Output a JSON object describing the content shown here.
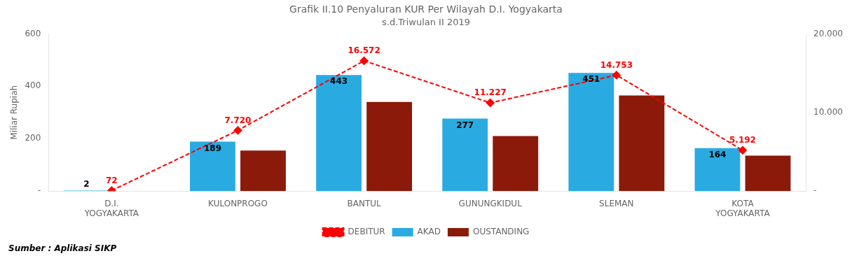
{
  "chart_data": {
    "type": "bar",
    "title": "Grafik II.10 Penyaluran KUR Per Wilayah D.I. Yogyakarta",
    "subtitle": "s.d.Triwulan II 2019",
    "categories": [
      "D.I.\nYOGYAKARTA",
      "KULONPROGO",
      "BANTUL",
      "GUNUNGKIDUL",
      "SLEMAN",
      "KOTA\nYOGYAKARTA"
    ],
    "series": [
      {
        "name": "AKAD",
        "color": "#29ABE2",
        "values": [
          2,
          189,
          443,
          277,
          451,
          164
        ],
        "data_labels": true
      },
      {
        "name": "OUSTANDING",
        "color": "#8B1A0A",
        "values": [
          0,
          155,
          340,
          210,
          365,
          135
        ]
      },
      {
        "name": "DEBITUR",
        "type": "line",
        "color": "red",
        "marker": "diamond",
        "line_style": "dashed",
        "axis": "y2",
        "values": [
          72,
          7720,
          16572,
          11227,
          14753,
          5192
        ],
        "data_labels": true,
        "value_labels": [
          "72",
          "7.720",
          "16.572",
          "11.227",
          "14.753",
          "5.192"
        ]
      }
    ],
    "ylabel": "Miliar Rupiah",
    "ylim": [
      0,
      600
    ],
    "yticks": [
      {
        "value": 0,
        "label": "-"
      },
      200,
      400,
      600
    ],
    "y2lim": [
      0,
      20000
    ],
    "y2ticks": [
      {
        "value": 0,
        "label": "-"
      },
      {
        "value": 10000,
        "label": "10.000"
      },
      {
        "value": 20000,
        "label": "20.000"
      }
    ],
    "grid": false,
    "legend": "bottom",
    "annotations": [
      "Sumber : Aplikasi SIKP"
    ]
  }
}
